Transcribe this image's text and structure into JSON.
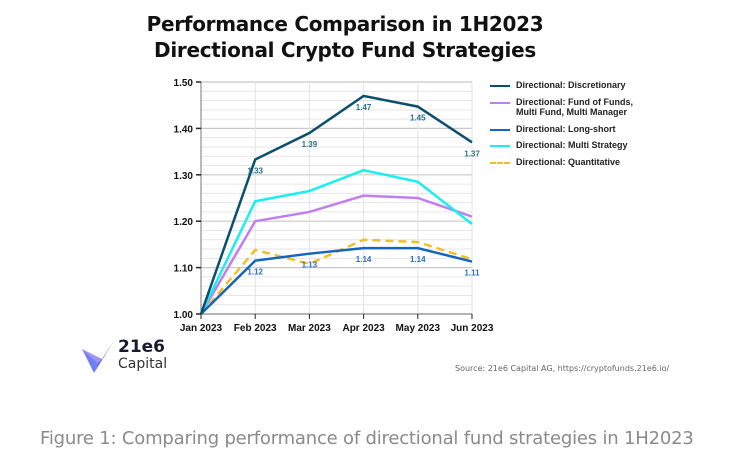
{
  "header": {
    "title_line1": "Performance Comparison in 1H2023",
    "title_line2": "Directional Crypto Fund Strategies"
  },
  "logo": {
    "name_line1": "21e6",
    "name_line2": "Capital",
    "icon": "21e6-logo-icon"
  },
  "source": "Source: 21e6 Capital AG, https://cryptofunds.21e6.io/",
  "caption": "Figure 1:  Comparing performance of directional fund strategies in 1H2023",
  "chart_data": {
    "type": "line",
    "title": "Performance Comparison in 1H2023 Directional Crypto Fund Strategies",
    "xlabel": "",
    "ylabel": "",
    "x": [
      "Jan 2023",
      "Feb 2023",
      "Mar 2023",
      "Apr 2023",
      "May 2023",
      "Jun 2023"
    ],
    "ylim": [
      1.0,
      1.5
    ],
    "yticks": [
      "1.00",
      "1.10",
      "1.20",
      "1.30",
      "1.40",
      "1.50"
    ],
    "grid": true,
    "legend_position": "right",
    "series": [
      {
        "name": "Directional: Discretionary",
        "color": "#0b4f6c",
        "dashed": false,
        "values": [
          1.0,
          1.333,
          1.39,
          1.47,
          1.447,
          1.37
        ],
        "labels": [
          "",
          "1.33",
          "1.39",
          "1.47",
          "1.45",
          "1.37"
        ]
      },
      {
        "name": "Directional: Fund of Funds, Multi Fund, Multi Manager",
        "color": "#c07ef0",
        "dashed": false,
        "values": [
          1.0,
          1.2,
          1.22,
          1.255,
          1.25,
          1.21
        ],
        "labels": [
          "",
          "",
          "",
          "",
          "",
          ""
        ]
      },
      {
        "name": "Directional: Long-short",
        "color": "#1565c0",
        "dashed": false,
        "values": [
          1.0,
          1.115,
          1.13,
          1.142,
          1.142,
          1.113
        ],
        "labels": [
          "",
          "1.12",
          "1.13",
          "1.14",
          "1.14",
          "1.11"
        ]
      },
      {
        "name": "Directional: Multi Strategy",
        "color": "#18f0f0",
        "dashed": false,
        "values": [
          1.0,
          1.243,
          1.265,
          1.31,
          1.285,
          1.194
        ],
        "labels": [
          "",
          "",
          "",
          "",
          "",
          ""
        ]
      },
      {
        "name": "Directional: Quantitative",
        "color": "#f2bd2c",
        "dashed": true,
        "values": [
          1.0,
          1.138,
          1.108,
          1.16,
          1.155,
          1.118
        ],
        "labels": [
          "",
          "",
          "",
          "",
          "",
          ""
        ]
      }
    ]
  }
}
